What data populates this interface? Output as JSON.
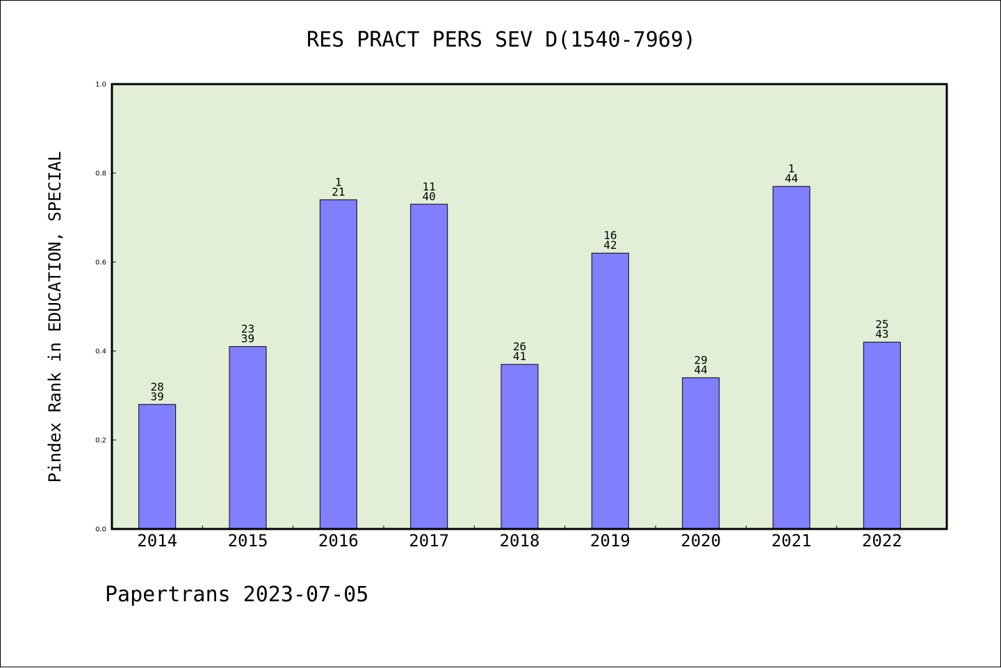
{
  "chart_data": {
    "type": "bar",
    "title": "RES PRACT PERS SEV D(1540-7969)",
    "xlabel": "",
    "ylabel": "Pindex Rank in EDUCATION, SPECIAL",
    "categories": [
      "2014",
      "2015",
      "2016",
      "2017",
      "2018",
      "2019",
      "2020",
      "2021",
      "2022"
    ],
    "values": [
      0.28,
      0.41,
      0.74,
      0.73,
      0.37,
      0.62,
      0.34,
      0.77,
      0.42
    ],
    "rank_labels": [
      {
        "rank": "28",
        "total": "39"
      },
      {
        "rank": "23",
        "total": "39"
      },
      {
        "rank": "1",
        "total": "21"
      },
      {
        "rank": "11",
        "total": "40"
      },
      {
        "rank": "26",
        "total": "41"
      },
      {
        "rank": "16",
        "total": "42"
      },
      {
        "rank": "29",
        "total": "44"
      },
      {
        "rank": "1",
        "total": "44"
      },
      {
        "rank": "25",
        "total": "43"
      }
    ],
    "ylim": [
      0.0,
      1.0
    ],
    "yticks": [
      "0.0",
      "0.2",
      "0.4",
      "0.6",
      "0.8",
      "1.0"
    ],
    "grid": false,
    "colors": {
      "plot_background": "#e2efd6",
      "bar_fill": "#8080ff",
      "bar_edge": "#000000"
    }
  },
  "footer": {
    "text": "Papertrans 2023-07-05"
  }
}
